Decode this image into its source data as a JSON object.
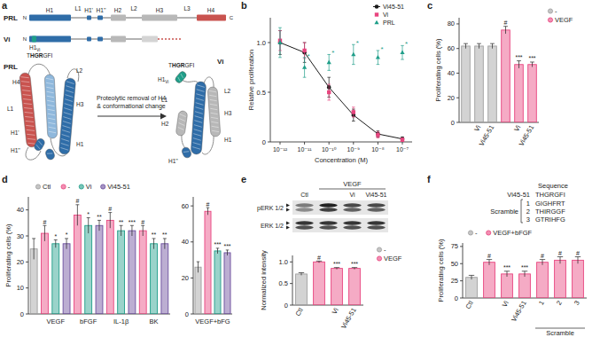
{
  "panel_labels": [
    "a",
    "b",
    "c",
    "d",
    "e",
    "f"
  ],
  "diagram": {
    "schematic": {
      "rows": [
        {
          "label": "PRL",
          "start": "N",
          "end": "C"
        },
        {
          "label": "Vi",
          "start": "N"
        }
      ],
      "domains": [
        "H1",
        "L1",
        "H1'",
        "H1''",
        "H2",
        "L2",
        "H3",
        "L3",
        "H4"
      ],
      "vi_domain": {
        "text": "H1",
        "sub": "Vi"
      },
      "sequence": [
        {
          "text": "T",
          "bold": false
        },
        {
          "text": "HGR",
          "bold": true
        },
        {
          "text": "GFI",
          "bold": false
        }
      ]
    },
    "structures": {
      "prl": {
        "title": "PRL",
        "labels": [
          {
            "text": "H4"
          },
          {
            "text": "L2"
          },
          {
            "text": "L1"
          },
          {
            "text": "H3"
          },
          {
            "text": "H1'"
          },
          {
            "text": "H1''"
          },
          {
            "text": "H1"
          }
        ]
      },
      "vi": {
        "title": "Vi",
        "sequence": [
          {
            "text": "T",
            "bold": false
          },
          {
            "text": "HGR",
            "bold": true
          },
          {
            "text": "GFI",
            "bold": false
          }
        ],
        "labels": [
          {
            "text": "H1",
            "sub": "Vi"
          },
          {
            "text": "L1"
          },
          {
            "text": "H2"
          },
          {
            "text": "H1''"
          },
          {
            "text": "H1"
          },
          {
            "text": "L2"
          },
          {
            "text": "H3"
          }
        ]
      }
    },
    "arrow_text": [
      "Proteolytic removal of H4",
      "& conformational change"
    ]
  },
  "blot": {
    "treatment": "VEGF",
    "lanes": [
      "Ctl",
      null,
      "Vi",
      "Vi45-51"
    ],
    "rows": [
      "pERK 1/2",
      "ERK 1/2"
    ]
  },
  "sequence_table": {
    "header": "Sequence",
    "rows": [
      {
        "label": "Vi45-51",
        "sequence": "THGRGFI"
      }
    ],
    "scramble_label": "Scramble",
    "scramble_rows": [
      {
        "label": "1",
        "sequence": "GIGHFRT"
      },
      {
        "label": "2",
        "sequence": "THIRGGF"
      },
      {
        "label": "3",
        "sequence": "GTRIHFG"
      }
    ]
  },
  "chart_data": [
    {
      "type": "line",
      "x_label": "Concentration (M)",
      "y_label": "Relative proliferation",
      "log": "x",
      "xlim": [
        4e-13,
        2.5e-07
      ],
      "xticks": [
        {
          "value": 1e-12,
          "label": "10⁻¹²"
        },
        {
          "value": 1e-11,
          "label": "10⁻¹¹"
        },
        {
          "value": 1e-10,
          "label": "10⁻¹⁰"
        },
        {
          "value": 1e-09,
          "label": "10⁻⁹"
        },
        {
          "value": 1e-08,
          "label": "10⁻⁸"
        },
        {
          "value": 1e-07,
          "label": "10⁻⁷"
        }
      ],
      "ylim": [
        0,
        1.25
      ],
      "yticks": [
        0,
        0.5,
        {
          "value": 1,
          "label": "1.0"
        }
      ],
      "series": [
        {
          "name": "Vi45-51",
          "color": "#1a1a1a",
          "marker": "circle",
          "line_style": "solid",
          "x": [
            1e-12,
            1e-11,
            1e-10,
            1e-09,
            1e-08,
            1e-07
          ],
          "values": [
            1.0,
            0.9,
            0.55,
            0.27,
            0.08,
            0.03
          ],
          "errors": [
            0.12,
            0.1,
            0.1,
            0.06,
            0.03,
            0.02
          ]
        },
        {
          "name": "Vi",
          "color": "#e8457f",
          "marker": "square",
          "line_style": "none",
          "x": [
            1e-12,
            1e-11,
            1e-10,
            1e-09,
            1e-08,
            1e-07
          ],
          "values": [
            1.02,
            0.92,
            0.5,
            0.3,
            0.07,
            0.02
          ],
          "errors": [
            0.1,
            0.08,
            0.08,
            0.05,
            0.03,
            0.02
          ]
        },
        {
          "name": "PRL",
          "color": "#1f9e89",
          "marker": "triangle",
          "line_style": "none",
          "x": [
            1e-12,
            1e-11,
            1e-10,
            1e-09,
            1e-08,
            1e-07
          ],
          "values": [
            1.0,
            0.75,
            0.8,
            0.88,
            0.85,
            0.9
          ],
          "errors": [
            0.15,
            0.1,
            0.08,
            0.1,
            0.07,
            0.07
          ],
          "significance": [
            null,
            "*",
            "*",
            "*",
            "*",
            "*"
          ]
        }
      ]
    },
    {
      "type": "bar",
      "y_label": "Proliferating cells (%)",
      "categories": [
        null,
        "Vi",
        "Vi45-51",
        null,
        "Vi",
        "Vi45-51"
      ],
      "values": [
        62,
        62,
        62,
        75,
        47,
        47
      ],
      "errors": [
        2,
        2,
        2,
        3,
        3,
        2
      ],
      "colors": [
        "#9e9e9e",
        "#9e9e9e",
        "#9e9e9e",
        "#e8457f",
        "#e8457f",
        "#e8457f"
      ],
      "annotations": [
        null,
        null,
        null,
        "#",
        "***",
        "***"
      ],
      "legend_entries": [
        {
          "name": "-",
          "color": "#9e9e9e"
        },
        {
          "name": "VEGF",
          "color": "#e8457f"
        }
      ],
      "ylim": [
        0,
        85
      ],
      "yticks": [
        0,
        20,
        40,
        60,
        80
      ]
    },
    {
      "type": "bar",
      "y_label": "Proliferating cells (%)",
      "categories": [
        null,
        null,
        "VEGF",
        null,
        null,
        "bFGF",
        null,
        null,
        "IL-1β",
        null,
        null,
        "BK",
        null
      ],
      "values": [
        25,
        31,
        27,
        27,
        38,
        34,
        34,
        36,
        32,
        32,
        32,
        27,
        27
      ],
      "errors": [
        4,
        3,
        1.5,
        2,
        4,
        3,
        2,
        3,
        2,
        2,
        2,
        2,
        2
      ],
      "colors": [
        "#9e9e9e",
        "#e8457f",
        "#1f9e89",
        "#6a4c9c",
        "#e8457f",
        "#1f9e89",
        "#6a4c9c",
        "#e8457f",
        "#1f9e89",
        "#6a4c9c",
        "#e8457f",
        "#1f9e89",
        "#6a4c9c"
      ],
      "annotations": [
        null,
        "#",
        "*",
        "*",
        "#",
        "*",
        "**",
        "#",
        "**",
        "***",
        "#",
        "**",
        "**"
      ],
      "legend_entries": [
        {
          "name": "Ctl",
          "color": "#9e9e9e"
        },
        {
          "name": "-",
          "color": "#e8457f"
        },
        {
          "name": "Vi",
          "color": "#1f9e89"
        },
        {
          "name": "Vi45-51",
          "color": "#6a4c9c"
        }
      ],
      "ylim": [
        0,
        45
      ],
      "yticks": [
        0,
        10,
        20,
        30,
        40
      ]
    },
    {
      "type": "bar",
      "x_label": "VEGF+bFG",
      "values": [
        26,
        57,
        35,
        34
      ],
      "errors": [
        3,
        2,
        1.5,
        1.5
      ],
      "colors": [
        "#9e9e9e",
        "#e8457f",
        "#1f9e89",
        "#6a4c9c"
      ],
      "annotations": [
        null,
        "#",
        "***",
        "***"
      ],
      "ylim": [
        0,
        65
      ],
      "yticks": [
        0,
        20,
        40,
        60
      ]
    },
    {
      "type": "bar",
      "y_label": "Normalized intensity",
      "categories": [
        "Ctl",
        null,
        "Vi",
        "Vi45-51"
      ],
      "values": [
        0.72,
        1.0,
        0.85,
        0.85
      ],
      "errors": [
        0.03,
        0.02,
        0.02,
        0.02
      ],
      "colors": [
        "#9e9e9e",
        "#e8457f",
        "#e8457f",
        "#e8457f"
      ],
      "annotations": [
        null,
        "#",
        "***",
        "***"
      ],
      "legend_entries": [
        {
          "name": "-",
          "color": "#9e9e9e"
        },
        {
          "name": "VEGF",
          "color": "#e8457f"
        }
      ],
      "ylim": [
        0,
        1.15
      ],
      "yticks": [
        0,
        0.5,
        {
          "value": 1,
          "label": "1.0"
        }
      ]
    },
    {
      "type": "bar",
      "y_label": "Proliferating cells (%)",
      "x_label": "Scramble",
      "categories": [
        "Ctl",
        null,
        "Vi",
        "Vi45-51",
        "1",
        "2",
        "3"
      ],
      "values": [
        30,
        52,
        35,
        35,
        52,
        55,
        55
      ],
      "errors": [
        3,
        4,
        4,
        4,
        4,
        5,
        5
      ],
      "colors": [
        "#9e9e9e",
        "#e8457f",
        "#e8457f",
        "#e8457f",
        "#e8457f",
        "#e8457f",
        "#e8457f"
      ],
      "annotations": [
        null,
        "#",
        "***",
        "***",
        "#",
        "#",
        "#"
      ],
      "legend_entries": [
        {
          "name": "-",
          "color": "#9e9e9e"
        },
        {
          "name": "VEGF+bFGF",
          "color": "#e8457f"
        }
      ],
      "ylim": [
        0,
        80
      ],
      "yticks": [
        0,
        25,
        50,
        75
      ]
    }
  ]
}
